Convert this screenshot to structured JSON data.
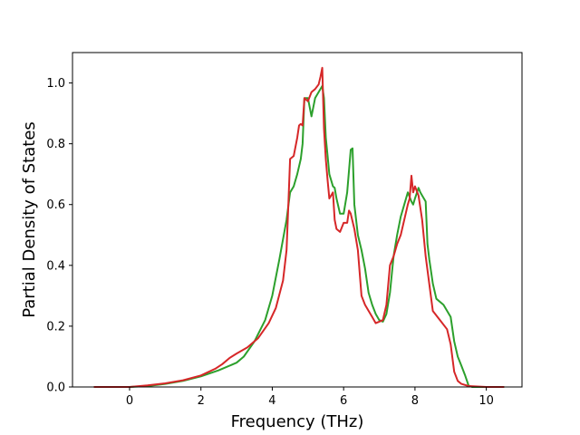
{
  "chart_data": {
    "type": "line",
    "title": "",
    "xlabel": "Frequency (THz)",
    "ylabel": "Partial Density of States",
    "xlim": [
      -1.6,
      11.0
    ],
    "ylim": [
      0.0,
      1.1
    ],
    "xticks": [
      0,
      2,
      4,
      6,
      8,
      10
    ],
    "xtick_labels": [
      "0",
      "2",
      "4",
      "6",
      "8",
      "10"
    ],
    "yticks": [
      0.0,
      0.2,
      0.4,
      0.6,
      0.8,
      1.0
    ],
    "ytick_labels": [
      "0.0",
      "0.2",
      "0.4",
      "0.6",
      "0.8",
      "1.0"
    ],
    "grid": false,
    "series": [
      {
        "color": "#2ca02c",
        "x": [
          -1.0,
          0.0,
          0.5,
          1.0,
          1.5,
          2.0,
          2.5,
          3.0,
          3.2,
          3.5,
          3.8,
          4.0,
          4.2,
          4.4,
          4.5,
          4.6,
          4.7,
          4.8,
          4.85,
          4.9,
          5.0,
          5.1,
          5.2,
          5.3,
          5.4,
          5.45,
          5.5,
          5.55,
          5.6,
          5.7,
          5.75,
          5.8,
          5.9,
          6.0,
          6.1,
          6.2,
          6.25,
          6.3,
          6.4,
          6.5,
          6.6,
          6.7,
          6.8,
          6.9,
          7.0,
          7.1,
          7.2,
          7.3,
          7.4,
          7.5,
          7.6,
          7.7,
          7.8,
          7.9,
          7.95,
          8.0,
          8.1,
          8.15,
          8.2,
          8.3,
          8.35,
          8.4,
          8.5,
          8.6,
          8.8,
          9.0,
          9.1,
          9.2,
          9.3,
          9.4,
          9.5,
          9.6,
          10.0,
          10.5
        ],
        "y": [
          0.0,
          0.0,
          0.003,
          0.01,
          0.02,
          0.035,
          0.055,
          0.08,
          0.1,
          0.15,
          0.22,
          0.3,
          0.42,
          0.55,
          0.64,
          0.66,
          0.7,
          0.75,
          0.8,
          0.95,
          0.95,
          0.89,
          0.95,
          0.97,
          0.99,
          0.95,
          0.82,
          0.76,
          0.7,
          0.66,
          0.655,
          0.62,
          0.57,
          0.57,
          0.64,
          0.78,
          0.785,
          0.6,
          0.5,
          0.45,
          0.39,
          0.31,
          0.27,
          0.24,
          0.22,
          0.215,
          0.24,
          0.31,
          0.43,
          0.5,
          0.56,
          0.6,
          0.64,
          0.61,
          0.6,
          0.62,
          0.655,
          0.64,
          0.63,
          0.61,
          0.47,
          0.42,
          0.34,
          0.29,
          0.27,
          0.23,
          0.15,
          0.1,
          0.07,
          0.04,
          0.005,
          0.0,
          0.0,
          0.0
        ]
      },
      {
        "color": "#d62728",
        "x": [
          -1.0,
          0.0,
          0.5,
          1.0,
          1.5,
          2.0,
          2.4,
          2.6,
          2.8,
          3.0,
          3.3,
          3.6,
          3.9,
          4.1,
          4.3,
          4.4,
          4.45,
          4.5,
          4.6,
          4.7,
          4.75,
          4.8,
          4.85,
          4.9,
          5.0,
          5.1,
          5.2,
          5.3,
          5.35,
          5.4,
          5.45,
          5.5,
          5.55,
          5.6,
          5.7,
          5.75,
          5.8,
          5.9,
          6.0,
          6.1,
          6.15,
          6.2,
          6.3,
          6.4,
          6.5,
          6.6,
          6.8,
          6.9,
          7.0,
          7.1,
          7.2,
          7.3,
          7.4,
          7.5,
          7.6,
          7.7,
          7.8,
          7.85,
          7.9,
          7.95,
          8.0,
          8.1,
          8.2,
          8.3,
          8.5,
          8.7,
          8.9,
          9.0,
          9.1,
          9.2,
          9.3,
          9.5,
          10.0,
          10.5
        ],
        "y": [
          0.0,
          0.0,
          0.005,
          0.012,
          0.022,
          0.038,
          0.06,
          0.075,
          0.095,
          0.11,
          0.13,
          0.16,
          0.21,
          0.26,
          0.35,
          0.45,
          0.6,
          0.75,
          0.76,
          0.82,
          0.86,
          0.865,
          0.86,
          0.95,
          0.94,
          0.97,
          0.98,
          0.995,
          1.02,
          1.05,
          0.85,
          0.75,
          0.68,
          0.62,
          0.64,
          0.55,
          0.52,
          0.51,
          0.54,
          0.54,
          0.58,
          0.57,
          0.52,
          0.45,
          0.3,
          0.27,
          0.23,
          0.21,
          0.215,
          0.22,
          0.27,
          0.4,
          0.43,
          0.47,
          0.5,
          0.55,
          0.6,
          0.62,
          0.695,
          0.64,
          0.66,
          0.63,
          0.55,
          0.43,
          0.25,
          0.22,
          0.19,
          0.14,
          0.05,
          0.02,
          0.01,
          0.003,
          0.0,
          0.0
        ]
      }
    ]
  }
}
